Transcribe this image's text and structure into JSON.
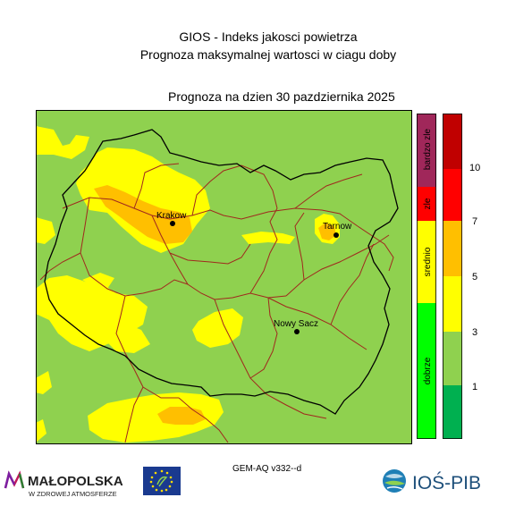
{
  "header": {
    "title_line1": "GIOS - Indeks jakosci powietrza",
    "title_line2": "Prognoza maksymalnej wartosci w ciagu doby",
    "date_line": "Prognoza na dzien  30 pazdziernika 2025"
  },
  "map": {
    "cities": [
      {
        "name": "Krakow"
      },
      {
        "name": "Tarnow"
      },
      {
        "name": "Nowy Sacz"
      }
    ],
    "colors": {
      "dobre": "#8fd14f",
      "srednie": "#ffff00",
      "srednie_high": "#ffbf00",
      "zle": "#ff0000",
      "bardzo_zle": "#c00000",
      "dark_green": "#00b050",
      "green": "#00ff00",
      "border_powiat": "#a0281e",
      "border_region": "#000000"
    }
  },
  "legend": {
    "categories": [
      {
        "label": "bardzo zle",
        "color": "#a0275a"
      },
      {
        "label": "zle",
        "color": "#ff0000"
      },
      {
        "label": "srednio",
        "color": "#ffff00"
      },
      {
        "label": "dobrze",
        "color": "#00ff00"
      }
    ],
    "scale_ticks": [
      "10",
      "7",
      "5",
      "3",
      "1"
    ]
  },
  "footer": {
    "model": "GEM-AQ v332--d",
    "malopolska_name": "MAŁOPOLSKA",
    "malopolska_tagline": "W ZDROWEJ ATMOSFERZE",
    "ios_name": "IOŚ-PIB"
  }
}
